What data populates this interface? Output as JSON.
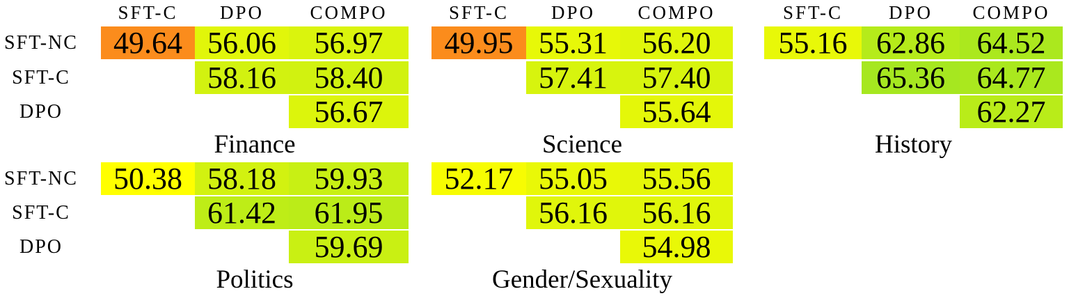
{
  "figure": {
    "row_labels": [
      "SFT-NC",
      "SFT-C",
      "DPO"
    ],
    "col_headers": [
      "SFT-C",
      "DPO",
      "COMPO"
    ],
    "tables": [
      {
        "caption": "Finance",
        "rows": [
          [
            {
              "v": "49.64",
              "bg": "#FB8C1C"
            },
            {
              "v": "56.06",
              "bg": "#E1F60A"
            },
            {
              "v": "56.97",
              "bg": "#DAF40D"
            }
          ],
          [
            null,
            {
              "v": "58.16",
              "bg": "#D2F210"
            },
            {
              "v": "58.40",
              "bg": "#D1F210"
            }
          ],
          [
            null,
            null,
            {
              "v": "56.67",
              "bg": "#DCF50C"
            }
          ]
        ]
      },
      {
        "caption": "Science",
        "rows": [
          [
            {
              "v": "49.95",
              "bg": "#FB8C1C"
            },
            {
              "v": "55.31",
              "bg": "#E7F808"
            },
            {
              "v": "56.20",
              "bg": "#E0F60B"
            }
          ],
          [
            null,
            {
              "v": "57.41",
              "bg": "#D7F40E"
            },
            {
              "v": "57.40",
              "bg": "#D7F40E"
            }
          ],
          [
            null,
            null,
            {
              "v": "55.64",
              "bg": "#E4F709"
            }
          ]
        ]
      },
      {
        "caption": "History",
        "rows": [
          [
            {
              "v": "55.16",
              "bg": "#E8F808"
            },
            {
              "v": "62.86",
              "bg": "#B5EB1A"
            },
            {
              "v": "64.52",
              "bg": "#ABE81E"
            }
          ],
          [
            null,
            {
              "v": "65.36",
              "bg": "#A6E720"
            },
            {
              "v": "64.77",
              "bg": "#AAE81E"
            }
          ],
          [
            null,
            null,
            {
              "v": "62.27",
              "bg": "#B9EC19"
            }
          ]
        ]
      },
      {
        "caption": "Politics",
        "rows": [
          [
            {
              "v": "50.38",
              "bg": "#FFFF00"
            },
            {
              "v": "58.18",
              "bg": "#D2F210"
            },
            {
              "v": "59.93",
              "bg": "#C8F014"
            }
          ],
          [
            null,
            {
              "v": "61.42",
              "bg": "#BEED17"
            },
            {
              "v": "61.95",
              "bg": "#BBEC18"
            }
          ],
          [
            null,
            null,
            {
              "v": "59.69",
              "bg": "#C9F013"
            }
          ]
        ]
      },
      {
        "caption": "Gender/Sexuality",
        "rows": [
          [
            {
              "v": "52.17",
              "bg": "#F7FC02"
            },
            {
              "v": "55.05",
              "bg": "#E9F807"
            },
            {
              "v": "55.56",
              "bg": "#E5F709"
            }
          ],
          [
            null,
            {
              "v": "56.16",
              "bg": "#E0F60B"
            },
            {
              "v": "56.16",
              "bg": "#E0F60B"
            }
          ],
          [
            null,
            null,
            {
              "v": "54.98",
              "bg": "#E9F807"
            }
          ]
        ]
      }
    ],
    "colors": {
      "low_outlier": "#FB8C1C",
      "mid_yellow": "#FFFF00",
      "high_green": "#A6E720",
      "text": "#000000",
      "background": "#FFFFFF"
    }
  },
  "chart_data": [
    {
      "type": "heatmap",
      "title": "Finance",
      "x": [
        "SFT-C",
        "DPO",
        "COMPO"
      ],
      "y": [
        "SFT-NC",
        "SFT-C",
        "DPO"
      ],
      "values": [
        [
          49.64,
          56.06,
          56.97
        ],
        [
          null,
          58.16,
          58.4
        ],
        [
          null,
          null,
          56.67
        ]
      ],
      "colormap": "orange(<50) -> yellow(~50) -> yellow-green(~65)",
      "legend_position": "none",
      "grid": false
    },
    {
      "type": "heatmap",
      "title": "Science",
      "x": [
        "SFT-C",
        "DPO",
        "COMPO"
      ],
      "y": [
        "SFT-NC",
        "SFT-C",
        "DPO"
      ],
      "values": [
        [
          49.95,
          55.31,
          56.2
        ],
        [
          null,
          57.41,
          57.4
        ],
        [
          null,
          null,
          55.64
        ]
      ],
      "colormap": "orange(<50) -> yellow(~50) -> yellow-green(~65)",
      "legend_position": "none",
      "grid": false
    },
    {
      "type": "heatmap",
      "title": "History",
      "x": [
        "SFT-C",
        "DPO",
        "COMPO"
      ],
      "y": [
        "SFT-NC",
        "SFT-C",
        "DPO"
      ],
      "values": [
        [
          55.16,
          62.86,
          64.52
        ],
        [
          null,
          65.36,
          64.77
        ],
        [
          null,
          null,
          62.27
        ]
      ],
      "colormap": "orange(<50) -> yellow(~50) -> yellow-green(~65)",
      "legend_position": "none",
      "grid": false
    },
    {
      "type": "heatmap",
      "title": "Politics",
      "x": [
        "SFT-C",
        "DPO",
        "COMPO"
      ],
      "y": [
        "SFT-NC",
        "SFT-C",
        "DPO"
      ],
      "values": [
        [
          50.38,
          58.18,
          59.93
        ],
        [
          null,
          61.42,
          61.95
        ],
        [
          null,
          null,
          59.69
        ]
      ],
      "colormap": "orange(<50) -> yellow(~50) -> yellow-green(~65)",
      "legend_position": "none",
      "grid": false
    },
    {
      "type": "heatmap",
      "title": "Gender/Sexuality",
      "x": [
        "SFT-C",
        "DPO",
        "COMPO"
      ],
      "y": [
        "SFT-NC",
        "SFT-C",
        "DPO"
      ],
      "values": [
        [
          52.17,
          55.05,
          55.56
        ],
        [
          null,
          56.16,
          56.16
        ],
        [
          null,
          null,
          54.98
        ]
      ],
      "colormap": "orange(<50) -> yellow(~50) -> yellow-green(~65)",
      "legend_position": "none",
      "grid": false
    }
  ]
}
